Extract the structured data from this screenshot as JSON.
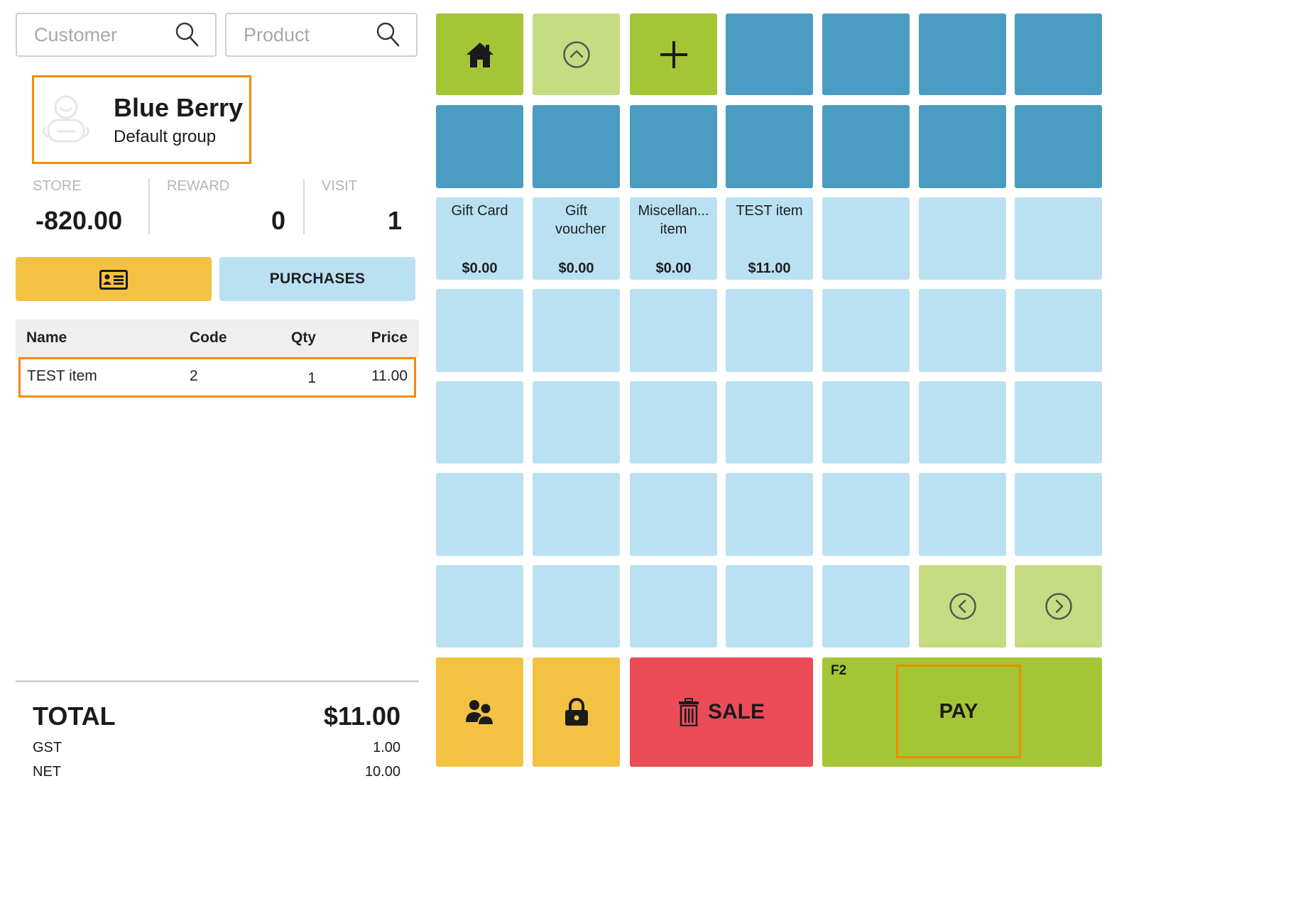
{
  "search": {
    "customer_placeholder": "Customer",
    "product_placeholder": "Product"
  },
  "customer": {
    "name": "Blue Berry",
    "group": "Default group",
    "avatar_icon": "user-placeholder-icon"
  },
  "stats": {
    "store_label": "STORE",
    "store_value": "-820.00",
    "reward_label": "REWARD",
    "reward_value": "0",
    "visit_label": "VISIT",
    "visit_value": "1"
  },
  "buttons": {
    "id_card_icon": "id-card-icon",
    "purchases_label": "PURCHASES"
  },
  "table": {
    "headers": [
      "Name",
      "Code",
      "Qty",
      "Price"
    ],
    "rows": [
      {
        "name": "TEST item",
        "code": "2",
        "qty": "1",
        "price": "11.00"
      }
    ]
  },
  "totals": {
    "total_label": "TOTAL",
    "total_value": "$11.00",
    "gst_label": "GST",
    "gst_value": "1.00",
    "net_label": "NET",
    "net_value": "10.00"
  },
  "products": [
    {
      "name": "Gift Card",
      "price": "$0.00"
    },
    {
      "name": "Gift voucher",
      "price": "$0.00"
    },
    {
      "name": "Miscellan... item",
      "price": "$0.00"
    },
    {
      "name": "TEST item",
      "price": "$11.00"
    }
  ],
  "actions": {
    "sale_label": "SALE",
    "pay_label": "PAY",
    "pay_shortcut": "F2"
  },
  "colors": {
    "green": "#a4c535",
    "light_green": "#c6dc82",
    "blue": "#4a9cc2",
    "light_blue": "#b9e1f2",
    "yellow": "#f4c242",
    "red": "#ea4d58",
    "highlight": "#f28c00"
  }
}
